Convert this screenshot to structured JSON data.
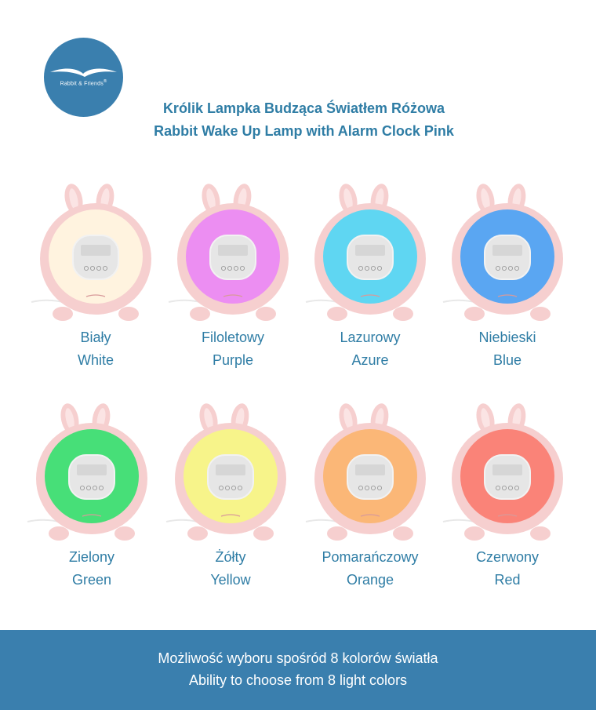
{
  "brand": {
    "logo_text": "Rabbit & Friends",
    "logo_mark": "®",
    "color": "#3a7fae"
  },
  "header": {
    "title_pl": "Królik Lampka Budząca Światłem Różowa",
    "title_en": "Rabbit Wake Up Lamp with Alarm Clock Pink",
    "color": "#2f7da5"
  },
  "lamps": [
    {
      "name_pl": "Biały",
      "name_en": "White",
      "light": "#fff3df"
    },
    {
      "name_pl": "Filoletowy",
      "name_en": "Purple",
      "light": "#ec8ef2"
    },
    {
      "name_pl": "Lazurowy",
      "name_en": "Azure",
      "light": "#5fd6f2"
    },
    {
      "name_pl": "Niebieski",
      "name_en": "Blue",
      "light": "#5aa6f2"
    },
    {
      "name_pl": "Zielony",
      "name_en": "Green",
      "light": "#47df78"
    },
    {
      "name_pl": "Żółty",
      "name_en": "Yellow",
      "light": "#f7f48a"
    },
    {
      "name_pl": "Pomarańczowy",
      "name_en": "Orange",
      "light": "#fbb777"
    },
    {
      "name_pl": "Czerwony",
      "name_en": "Red",
      "light": "#fa8378"
    }
  ],
  "footer": {
    "line_pl": "Możliwość wyboru spośród 8 kolorów światła",
    "line_en": "Ability to choose from 8 light colors",
    "color": "#3a7fae"
  },
  "colors": {
    "body_pink": "#f6cfcf",
    "display": "#e6e6e6",
    "caption": "#2f7da5"
  }
}
